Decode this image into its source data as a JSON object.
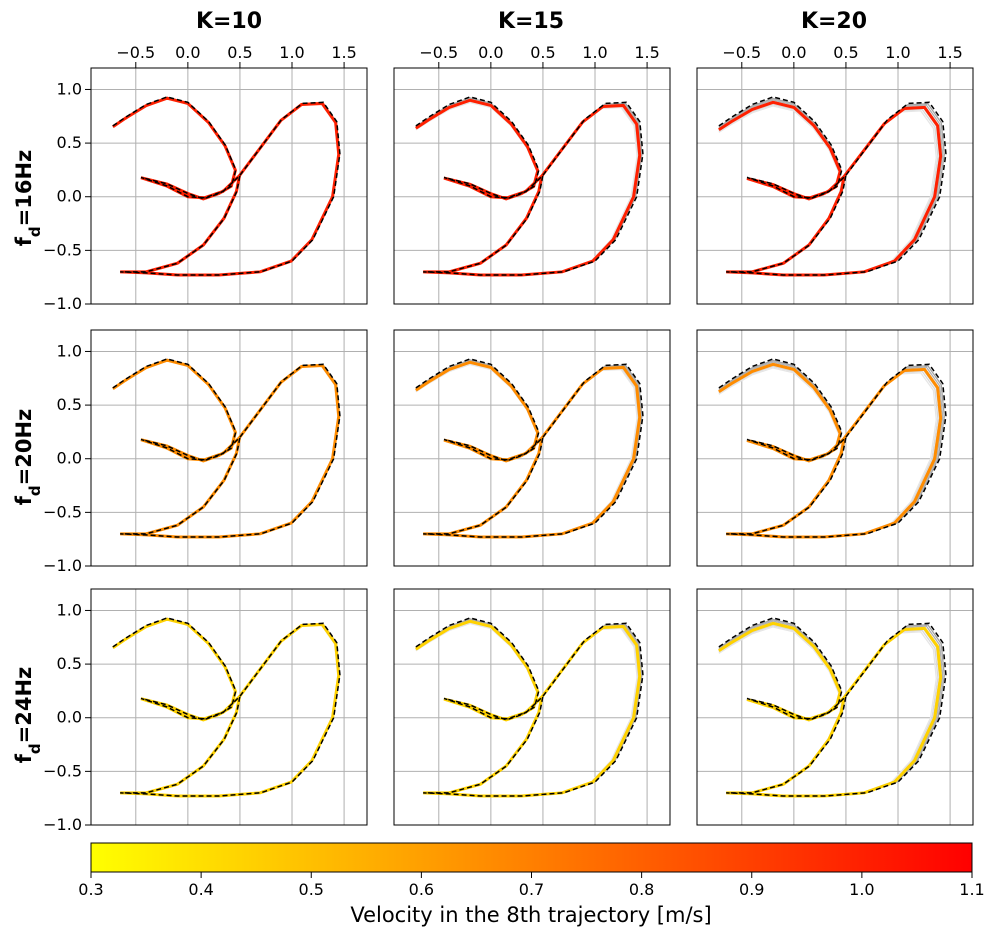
{
  "chart_data": {
    "type": "line",
    "description_panels": "3x3 grid of trajectory plots",
    "columns": [
      {
        "title": "K=10",
        "K": 10
      },
      {
        "title": "K=15",
        "K": 15
      },
      {
        "title": "K=20",
        "K": 20
      }
    ],
    "rows": [
      {
        "label_main": "f",
        "label_sub": "d",
        "label_rest": "=16Hz",
        "velocity": 1.0
      },
      {
        "label_main": "f",
        "label_sub": "d",
        "label_rest": "=20Hz",
        "velocity": 0.66
      },
      {
        "label_main": "f",
        "label_sub": "d",
        "label_rest": "=24Hz",
        "velocity": 0.44
      }
    ],
    "x_ticks": [
      -0.5,
      0.0,
      0.5,
      1.0,
      1.5
    ],
    "x_tick_labels": [
      "−0.5",
      "0.0",
      "0.5",
      "1.0",
      "1.5"
    ],
    "y_ticks": [
      -1.0,
      -0.5,
      0.0,
      0.5,
      1.0
    ],
    "y_tick_labels": [
      "−1.0",
      "−0.5",
      "0.0",
      "0.5",
      "1.0"
    ],
    "xlim": [
      -0.93,
      1.72
    ],
    "ylim": [
      -1.0,
      1.2
    ],
    "reference_trajectory": {
      "style": "black dashed",
      "points": [
        [
          -0.72,
          0.66
        ],
        [
          -0.6,
          0.74
        ],
        [
          -0.4,
          0.86
        ],
        [
          -0.2,
          0.93
        ],
        [
          0.0,
          0.88
        ],
        [
          0.2,
          0.7
        ],
        [
          0.36,
          0.48
        ],
        [
          0.46,
          0.25
        ],
        [
          0.42,
          0.1
        ],
        [
          0.3,
          0.03
        ],
        [
          0.15,
          -0.02
        ],
        [
          0.0,
          0.03
        ],
        [
          -0.2,
          0.12
        ],
        [
          -0.45,
          0.18
        ],
        [
          -0.45,
          0.18
        ],
        [
          -0.2,
          0.1
        ],
        [
          0.0,
          0.0
        ],
        [
          0.16,
          -0.01
        ],
        [
          0.34,
          0.05
        ],
        [
          0.5,
          0.2
        ],
        [
          0.7,
          0.46
        ],
        [
          0.9,
          0.72
        ],
        [
          1.1,
          0.87
        ],
        [
          1.3,
          0.88
        ],
        [
          1.43,
          0.7
        ],
        [
          1.46,
          0.4
        ],
        [
          1.4,
          0.0
        ],
        [
          1.2,
          -0.4
        ],
        [
          1.0,
          -0.6
        ],
        [
          0.7,
          -0.7
        ],
        [
          0.3,
          -0.73
        ],
        [
          -0.1,
          -0.73
        ],
        [
          -0.4,
          -0.71
        ],
        [
          -0.65,
          -0.7
        ],
        [
          -0.4,
          -0.7
        ],
        [
          -0.1,
          -0.62
        ],
        [
          0.15,
          -0.45
        ],
        [
          0.35,
          -0.2
        ],
        [
          0.47,
          0.05
        ],
        [
          0.5,
          0.2
        ]
      ]
    },
    "colorbar": {
      "min": 0.3,
      "max": 1.1,
      "colormap": "autumn_r",
      "color_low": "#ffff00",
      "color_high": "#ff0000",
      "ticks": [
        0.3,
        0.4,
        0.5,
        0.6,
        0.7,
        0.8,
        0.9,
        1.0,
        1.1
      ],
      "tick_labels": [
        "0.3",
        "0.4",
        "0.5",
        "0.6",
        "0.7",
        "0.8",
        "0.9",
        "1.0",
        "1.1"
      ],
      "label": "Velocity in the 8th trajectory [m/s]"
    },
    "grid": true
  }
}
